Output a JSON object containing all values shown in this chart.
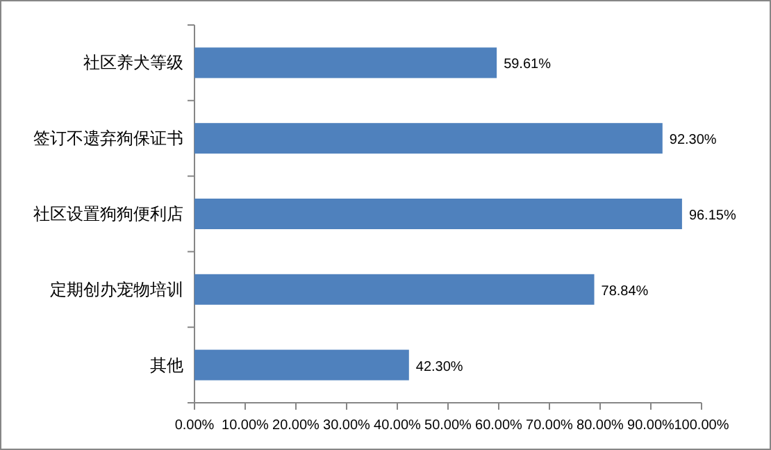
{
  "chart_data": {
    "type": "bar",
    "orientation": "horizontal",
    "categories": [
      "社区养犬等级",
      "签订不遗弃狗保证书",
      "社区设置狗狗便利店",
      "定期创办宠物培训",
      "其他"
    ],
    "values": [
      59.61,
      92.3,
      96.15,
      78.84,
      42.3
    ],
    "value_labels": [
      "59.61%",
      "92.30%",
      "96.15%",
      "78.84%",
      "42.30%"
    ],
    "color": "#4f81bd",
    "xlim": [
      0,
      100
    ],
    "xticks": [
      {
        "value": 0,
        "label": "0.00%"
      },
      {
        "value": 10,
        "label": "10.00%"
      },
      {
        "value": 20,
        "label": "20.00%"
      },
      {
        "value": 30,
        "label": "30.00%"
      },
      {
        "value": 40,
        "label": "40.00%"
      },
      {
        "value": 50,
        "label": "50.00%"
      },
      {
        "value": 60,
        "label": "60.00%"
      },
      {
        "value": 70,
        "label": "70.00%"
      },
      {
        "value": 80,
        "label": "80.00%"
      },
      {
        "value": 90,
        "label": "90.00%"
      },
      {
        "value": 100,
        "label": "100.00%"
      }
    ],
    "grid": false
  }
}
